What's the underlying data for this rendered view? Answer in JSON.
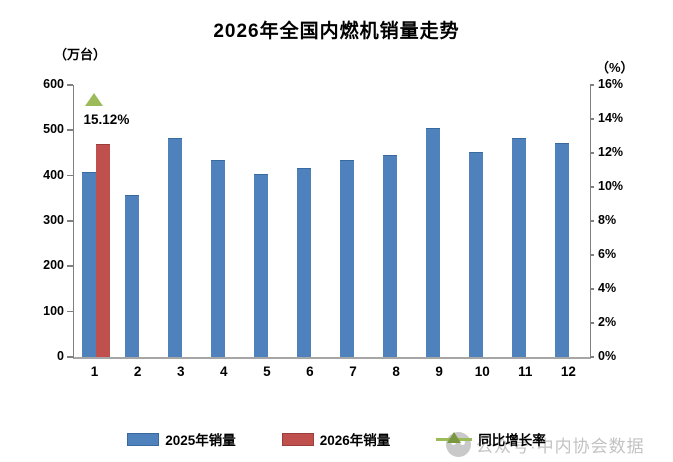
{
  "title": "2026年全国内燃机销量走势",
  "left_axis_unit": "（万台）",
  "right_axis_unit": "（%）",
  "annotation": "15.12%",
  "watermark": {
    "text": "公众号·中内协会数据"
  },
  "colors": {
    "bar_2025": "#4f81bd",
    "bar_2025_border": "#3a6a9d",
    "bar_2026": "#c0504d",
    "bar_2026_border": "#9a3f3c",
    "growth": "#9bbb59",
    "growth_border": "#7a9640",
    "axis": "#808080",
    "watermark": "#c3c3c3"
  },
  "legend": {
    "items": [
      {
        "label": "2025年销量",
        "type": "bar",
        "color": "#4f81bd"
      },
      {
        "label": "2026年销量",
        "type": "bar",
        "color": "#c0504d"
      },
      {
        "label": "同比增长率",
        "type": "line-triangle",
        "color": "#9bbb59"
      }
    ]
  },
  "chart_data": {
    "type": "bar",
    "title": "2026年全国内燃机销量走势",
    "categories": [
      "1",
      "2",
      "3",
      "4",
      "5",
      "6",
      "7",
      "8",
      "9",
      "10",
      "11",
      "12"
    ],
    "series": [
      {
        "name": "2025年销量",
        "type": "bar",
        "axis": "left",
        "color": "#4f81bd",
        "values": [
          408,
          358,
          483,
          435,
          404,
          417,
          435,
          445,
          506,
          452,
          483,
          473
        ]
      },
      {
        "name": "2026年销量",
        "type": "bar",
        "axis": "left",
        "color": "#c0504d",
        "values": [
          470,
          null,
          null,
          null,
          null,
          null,
          null,
          null,
          null,
          null,
          null,
          null
        ]
      },
      {
        "name": "同比增长率",
        "type": "scatter",
        "marker": "triangle",
        "axis": "right",
        "color": "#9bbb59",
        "values": [
          15.12,
          null,
          null,
          null,
          null,
          null,
          null,
          null,
          null,
          null,
          null,
          null
        ]
      }
    ],
    "left_axis": {
      "label": "（万台）",
      "min": 0,
      "max": 600,
      "tick_step": 100,
      "ticks": [
        0,
        100,
        200,
        300,
        400,
        500,
        600
      ]
    },
    "right_axis": {
      "label": "（%）",
      "min": 0,
      "max": 16,
      "tick_step": 2,
      "ticks": [
        "0%",
        "2%",
        "4%",
        "6%",
        "8%",
        "10%",
        "12%",
        "14%",
        "16%"
      ]
    },
    "grid": false,
    "legend_position": "bottom",
    "annotations": [
      {
        "text": "15.12%",
        "category": "1",
        "series": "同比增长率"
      }
    ]
  }
}
